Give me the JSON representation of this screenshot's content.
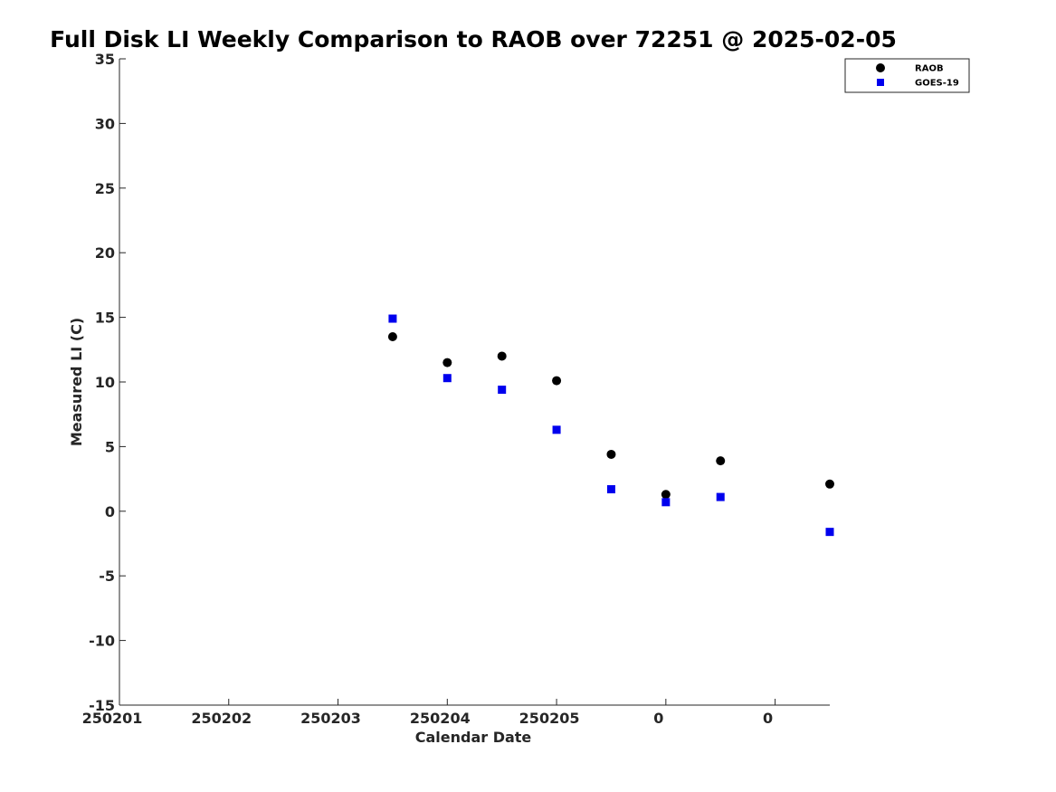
{
  "chart_data": {
    "type": "scatter",
    "title": "Full Disk LI Weekly Comparison to RAOB over 72251 @ 2025-02-05",
    "xlabel": "Calendar Date",
    "ylabel": "Measured LI (C)",
    "xlim": [
      0,
      6.5
    ],
    "ylim": [
      -15,
      35
    ],
    "x_ticks": [
      {
        "value": 0,
        "label": "250201"
      },
      {
        "value": 1,
        "label": "250202"
      },
      {
        "value": 2,
        "label": "250203"
      },
      {
        "value": 3,
        "label": "250204"
      },
      {
        "value": 4,
        "label": "250205"
      },
      {
        "value": 5,
        "label": "0"
      },
      {
        "value": 6,
        "label": "0"
      }
    ],
    "y_ticks": [
      -15,
      -10,
      -5,
      0,
      5,
      10,
      15,
      20,
      25,
      30,
      35
    ],
    "grid": false,
    "legend_position": "top-right",
    "series": [
      {
        "name": "RAOB",
        "marker": "circle",
        "color": "#000000",
        "x": [
          2.5,
          3.0,
          3.5,
          4.0,
          4.5,
          5.0,
          5.5,
          6.5
        ],
        "y": [
          13.5,
          11.5,
          12.0,
          10.1,
          4.4,
          1.3,
          3.9,
          2.1
        ]
      },
      {
        "name": "GOES-19",
        "marker": "square",
        "color": "#0000ee",
        "x": [
          2.5,
          3.0,
          3.5,
          4.0,
          4.5,
          5.0,
          5.5,
          6.5
        ],
        "y": [
          14.9,
          10.3,
          9.4,
          6.3,
          1.7,
          0.7,
          1.1,
          -1.6
        ]
      }
    ]
  }
}
